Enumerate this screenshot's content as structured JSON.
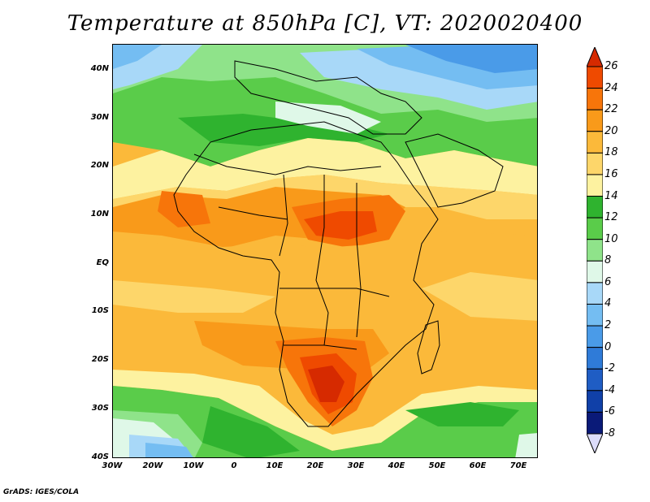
{
  "title": "Temperature at 850hPa [C], VT: 2020020400",
  "credit": "GrADS: IGES/COLA",
  "map": {
    "lat_labels": [
      "40N",
      "30N",
      "20N",
      "10N",
      "EQ",
      "10S",
      "20S",
      "30S",
      "40S"
    ],
    "lon_labels": [
      "30W",
      "20W",
      "10W",
      "0",
      "10E",
      "20E",
      "30E",
      "40E",
      "50E",
      "60E",
      "70E"
    ],
    "lat_range": [
      -40,
      45
    ],
    "lon_range": [
      -30,
      75
    ]
  },
  "colorbar": {
    "labels": [
      "26",
      "24",
      "22",
      "20",
      "18",
      "16",
      "14",
      "12",
      "10",
      "8",
      "6",
      "4",
      "2",
      "0",
      "-2",
      "-4",
      "-6",
      "-8"
    ],
    "colors": [
      "#d62a00",
      "#ef4a00",
      "#f7750a",
      "#f99a1a",
      "#fbb93a",
      "#fdd66a",
      "#fdf2a0",
      "#2fb32f",
      "#5acc4a",
      "#8fe38a",
      "#dff8e8",
      "#a8d8f8",
      "#74bdf2",
      "#4a9be8",
      "#2f7bd8",
      "#1f5dc4",
      "#1040a8",
      "#0a1a78",
      "#dcdcfa"
    ]
  }
}
